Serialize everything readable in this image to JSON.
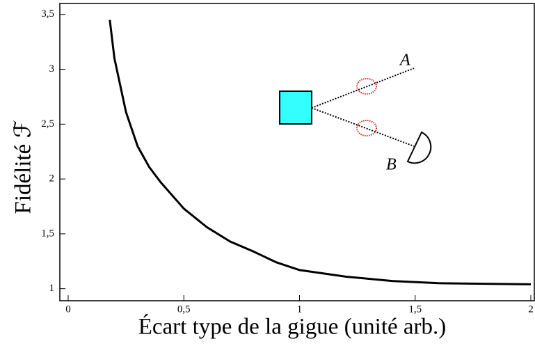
{
  "chart_data": {
    "type": "line",
    "xlabel": "Écart type de la gigue (unité arb.)",
    "ylabel": "Fidélité ℱ",
    "x": [
      0.18,
      0.2,
      0.25,
      0.3,
      0.35,
      0.4,
      0.5,
      0.6,
      0.7,
      0.8,
      0.9,
      1.0,
      1.2,
      1.4,
      1.6,
      1.8,
      2.0
    ],
    "values": [
      3.45,
      3.1,
      2.61,
      2.3,
      2.11,
      1.97,
      1.73,
      1.56,
      1.43,
      1.34,
      1.24,
      1.17,
      1.11,
      1.07,
      1.05,
      1.045,
      1.04
    ],
    "color": "#000000",
    "xlim": [
      -0.036,
      2.015
    ],
    "ylim": [
      0.89,
      3.6
    ],
    "xticks": [
      0,
      {
        "value": 0.5,
        "label": "0,5"
      },
      1,
      {
        "value": 1.5,
        "label": "1,5"
      },
      2
    ],
    "yticks": [
      1,
      {
        "value": 1.5,
        "label": "1,5"
      },
      2,
      {
        "value": 2.5,
        "label": "2,5"
      },
      3,
      {
        "value": 3.5,
        "label": "3,5"
      }
    ],
    "annotations": [
      "A",
      "B"
    ]
  }
}
